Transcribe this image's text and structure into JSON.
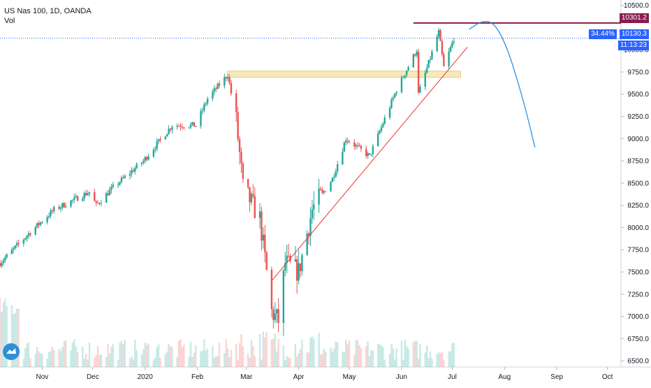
{
  "header": {
    "symbol_line": "US Nas 100, 1D, OANDA",
    "volume_label": "Vol"
  },
  "colors": {
    "up": "#26a69a",
    "down": "#ef5350",
    "resistance_line": "#8b1a4e",
    "support_zone": "#f7eab8",
    "trendline": "#e53935",
    "projection": "#1e88e5",
    "price_tag": "#2962ff",
    "axis_text": "#131722"
  },
  "tags": {
    "resistance_price": "10301.2",
    "change_pct": "34.44%",
    "last_price": "10130.3",
    "countdown": "11:13:23"
  },
  "chart_data": {
    "type": "candlestick",
    "title": "US Nas 100, 1D, OANDA",
    "ylim": [
      6430,
      10560
    ],
    "y_ticks": [
      6500,
      6750,
      7000,
      7250,
      7500,
      7750,
      8000,
      8250,
      8500,
      8750,
      9000,
      9250,
      9500,
      9750,
      10000,
      10500
    ],
    "y_tick_labels": [
      "6500.0",
      "6750.0",
      "7000.0",
      "7250.0",
      "7500.0",
      "7750.0",
      "8000.0",
      "8250.0",
      "8500.0",
      "8750.0",
      "9000.0",
      "9250.0",
      "9500.0",
      "9750.0",
      "10000.0",
      "10500.0"
    ],
    "x_start": "2019-10-07",
    "x_end": "2020-10-09",
    "x_ticks": [
      {
        "label": "Nov",
        "date": "2019-11-01"
      },
      {
        "label": "Dec",
        "date": "2019-12-01"
      },
      {
        "label": "2020",
        "date": "2020-01-01"
      },
      {
        "label": "Feb",
        "date": "2020-02-01"
      },
      {
        "label": "Mar",
        "date": "2020-03-01"
      },
      {
        "label": "Apr",
        "date": "2020-04-01"
      },
      {
        "label": "May",
        "date": "2020-05-01"
      },
      {
        "label": "Jun",
        "date": "2020-06-01"
      },
      {
        "label": "Jul",
        "date": "2020-07-01"
      },
      {
        "label": "Aug",
        "date": "2020-08-01"
      },
      {
        "label": "Sep",
        "date": "2020-09-01"
      },
      {
        "label": "Oct",
        "date": "2020-10-01"
      }
    ],
    "closes": [
      {
        "date": "2019-10-07",
        "close": 7600
      },
      {
        "date": "2019-10-25",
        "close": 7950
      },
      {
        "date": "2019-11-08",
        "close": 8200
      },
      {
        "date": "2019-11-29",
        "close": 8400
      },
      {
        "date": "2019-12-03",
        "close": 8250
      },
      {
        "date": "2019-12-13",
        "close": 8450
      },
      {
        "date": "2019-12-31",
        "close": 8750
      },
      {
        "date": "2020-01-17",
        "close": 9150
      },
      {
        "date": "2020-01-31",
        "close": 9150
      },
      {
        "date": "2020-02-07",
        "close": 9450
      },
      {
        "date": "2020-02-19",
        "close": 9720
      },
      {
        "date": "2020-02-24",
        "close": 9200
      },
      {
        "date": "2020-02-28",
        "close": 8450
      },
      {
        "date": "2020-03-09",
        "close": 8100
      },
      {
        "date": "2020-03-16",
        "close": 7050
      },
      {
        "date": "2020-03-20",
        "close": 6950
      },
      {
        "date": "2020-03-24",
        "close": 7600
      },
      {
        "date": "2020-04-01",
        "close": 7500
      },
      {
        "date": "2020-04-09",
        "close": 8200
      },
      {
        "date": "2020-04-21",
        "close": 8550
      },
      {
        "date": "2020-04-29",
        "close": 9000
      },
      {
        "date": "2020-05-13",
        "close": 8800
      },
      {
        "date": "2020-05-29",
        "close": 9550
      },
      {
        "date": "2020-06-10",
        "close": 10000
      },
      {
        "date": "2020-06-11",
        "close": 9500
      },
      {
        "date": "2020-06-23",
        "close": 10200
      },
      {
        "date": "2020-06-26",
        "close": 9800
      },
      {
        "date": "2020-07-02",
        "close": 10130
      }
    ],
    "annotations": {
      "resistance": {
        "from": "2020-06-08",
        "value": 10301.2
      },
      "support_zone": {
        "from": "2020-02-19",
        "to": "2020-07-06",
        "low": 9690,
        "high": 9760
      },
      "trendline": {
        "from": {
          "date": "2020-03-16",
          "value": 7400
        },
        "to": {
          "date": "2020-07-10",
          "value": 10030
        }
      },
      "projection": [
        {
          "date": "2020-07-11",
          "value": 10230
        },
        {
          "date": "2020-07-19",
          "value": 10330
        },
        {
          "date": "2020-07-26",
          "value": 10300
        },
        {
          "date": "2020-08-02",
          "value": 10050
        },
        {
          "date": "2020-08-08",
          "value": 9700
        },
        {
          "date": "2020-08-14",
          "value": 9300
        },
        {
          "date": "2020-08-19",
          "value": 8900
        }
      ]
    }
  }
}
